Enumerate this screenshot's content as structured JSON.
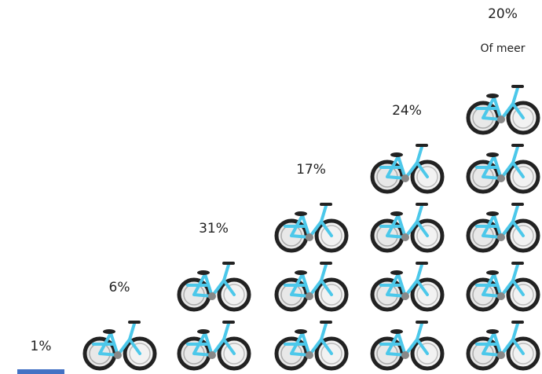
{
  "chart_data": {
    "type": "pictograph",
    "values": [
      1,
      6,
      31,
      17,
      24,
      20
    ],
    "value_labels": [
      "1%",
      "6%",
      "31%",
      "17%",
      "24%",
      "20%"
    ],
    "annotation": "Of meer",
    "color": "#4cc8ea"
  }
}
